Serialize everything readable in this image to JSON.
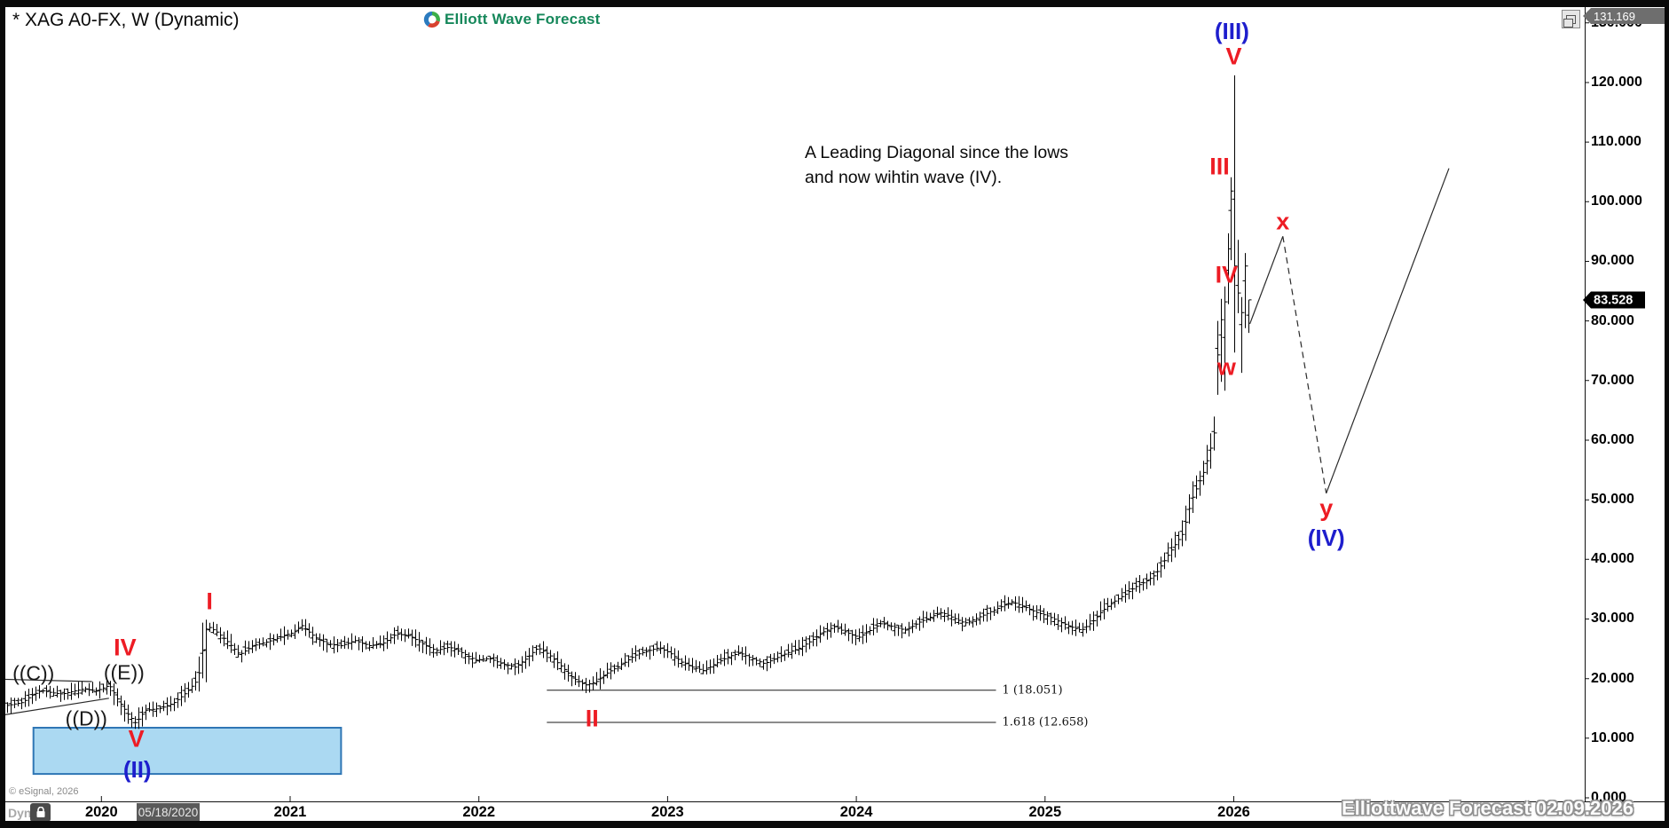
{
  "window": {
    "title": "* XAG A0-FX, W (Dynamic)",
    "brand": {
      "name": "Elliott Wave Forecast",
      "color": "#15875A"
    },
    "watermark": "Elliottwave Forecast  02.09.2026",
    "copyright": "© eSignal, 2026",
    "mode_label": "Dyn",
    "date_marker": "05/18/2020"
  },
  "note": {
    "line1": "A Leading Diagonal since the lows",
    "line2": "and now wihtin wave (IV)."
  },
  "price_axis": {
    "high_price_label": "131.169",
    "last_price_label": "83.528",
    "ticks": [
      {
        "value": 0,
        "label": "0.000"
      },
      {
        "value": 10,
        "label": "10.000"
      },
      {
        "value": 20,
        "label": "20.000"
      },
      {
        "value": 30,
        "label": "30.000"
      },
      {
        "value": 40,
        "label": "40.000"
      },
      {
        "value": 50,
        "label": "50.000"
      },
      {
        "value": 60,
        "label": "60.000"
      },
      {
        "value": 70,
        "label": "70.000"
      },
      {
        "value": 80,
        "label": "80.000"
      },
      {
        "value": 90,
        "label": "90.000"
      },
      {
        "value": 100,
        "label": "100.000"
      },
      {
        "value": 110,
        "label": "110.000"
      },
      {
        "value": 120,
        "label": "120.000"
      },
      {
        "value": 130,
        "label": "130.000"
      }
    ]
  },
  "time_axis": {
    "years": [
      "2020",
      "2021",
      "2022",
      "2023",
      "2024",
      "2025",
      "2026"
    ]
  },
  "chart_data": {
    "type": "ohlc-bar",
    "symbol": "XAG A0-FX",
    "timeframe": "W",
    "title": "* XAG A0-FX, W (Dynamic)",
    "y_axis": {
      "min": 0,
      "max": 131,
      "tick_step": 10,
      "grid": false
    },
    "x_axis": {
      "tick_years": [
        2020,
        2021,
        2022,
        2023,
        2024,
        2025,
        2026
      ]
    },
    "last_price": 83.528,
    "session_high": 131.169,
    "data_start": 2019.5,
    "data_end": 2025.902,
    "bar_step_years": 0.0188,
    "anchors": [
      [
        2019.5,
        15.5
      ],
      [
        2019.58,
        16.0
      ],
      [
        2019.63,
        17.2
      ],
      [
        2019.68,
        18.0
      ],
      [
        2019.74,
        17.6
      ],
      [
        2019.79,
        17.4
      ],
      [
        2019.85,
        17.9
      ],
      [
        2019.91,
        18.3
      ],
      [
        2019.97,
        17.9
      ],
      [
        2020.04,
        18.9
      ],
      [
        2020.09,
        16.2
      ],
      [
        2020.14,
        14.0
      ],
      [
        2020.18,
        12.5
      ],
      [
        2020.23,
        14.7
      ],
      [
        2020.31,
        15.0
      ],
      [
        2020.38,
        15.9
      ],
      [
        2020.45,
        17.7
      ],
      [
        2020.51,
        19.9
      ],
      [
        2020.555,
        28.9
      ],
      [
        2020.61,
        27.8
      ],
      [
        2020.66,
        26.4
      ],
      [
        2020.73,
        24.0
      ],
      [
        2020.8,
        25.5
      ],
      [
        2020.87,
        26.1
      ],
      [
        2020.94,
        26.9
      ],
      [
        2021.02,
        27.8
      ],
      [
        2021.06,
        28.9
      ],
      [
        2021.13,
        26.9
      ],
      [
        2021.2,
        25.8
      ],
      [
        2021.27,
        25.5
      ],
      [
        2021.34,
        26.4
      ],
      [
        2021.42,
        25.5
      ],
      [
        2021.49,
        25.9
      ],
      [
        2021.56,
        27.5
      ],
      [
        2021.63,
        27.2
      ],
      [
        2021.7,
        25.8
      ],
      [
        2021.77,
        24.7
      ],
      [
        2021.84,
        25.3
      ],
      [
        2021.91,
        24.3
      ],
      [
        2021.98,
        23.1
      ],
      [
        2022.05,
        23.4
      ],
      [
        2022.12,
        22.5
      ],
      [
        2022.19,
        21.9
      ],
      [
        2022.25,
        23.4
      ],
      [
        2022.31,
        25.2
      ],
      [
        2022.37,
        24.0
      ],
      [
        2022.44,
        21.9
      ],
      [
        2022.5,
        20.0
      ],
      [
        2022.56,
        18.9
      ],
      [
        2022.62,
        19.5
      ],
      [
        2022.68,
        21.0
      ],
      [
        2022.76,
        22.5
      ],
      [
        2022.83,
        24.0
      ],
      [
        2022.89,
        24.6
      ],
      [
        2022.95,
        25.2
      ],
      [
        2023.01,
        24.3
      ],
      [
        2023.07,
        22.8
      ],
      [
        2023.13,
        21.9
      ],
      [
        2023.19,
        21.3
      ],
      [
        2023.25,
        22.5
      ],
      [
        2023.32,
        23.7
      ],
      [
        2023.38,
        24.3
      ],
      [
        2023.44,
        23.4
      ],
      [
        2023.51,
        22.5
      ],
      [
        2023.57,
        23.4
      ],
      [
        2023.63,
        24.3
      ],
      [
        2023.7,
        25.2
      ],
      [
        2023.76,
        26.4
      ],
      [
        2023.82,
        27.8
      ],
      [
        2023.88,
        28.7
      ],
      [
        2023.94,
        27.8
      ],
      [
        2024.01,
        26.9
      ],
      [
        2024.07,
        28.1
      ],
      [
        2024.13,
        29.3
      ],
      [
        2024.19,
        28.7
      ],
      [
        2024.26,
        28.1
      ],
      [
        2024.32,
        29.3
      ],
      [
        2024.38,
        30.2
      ],
      [
        2024.45,
        31.1
      ],
      [
        2024.51,
        30.2
      ],
      [
        2024.57,
        29.3
      ],
      [
        2024.64,
        30.2
      ],
      [
        2024.7,
        31.1
      ],
      [
        2024.76,
        32.0
      ],
      [
        2024.82,
        32.9
      ],
      [
        2024.89,
        32.0
      ],
      [
        2024.95,
        31.1
      ],
      [
        2025.01,
        30.5
      ],
      [
        2025.07,
        29.6
      ],
      [
        2025.13,
        28.7
      ],
      [
        2025.19,
        28.1
      ],
      [
        2025.25,
        29.6
      ],
      [
        2025.3,
        31.4
      ],
      [
        2025.36,
        32.9
      ],
      [
        2025.42,
        34.1
      ],
      [
        2025.47,
        35.3
      ],
      [
        2025.53,
        36.3
      ],
      [
        2025.58,
        37.4
      ],
      [
        2025.61,
        38.9
      ],
      [
        2025.65,
        40.8
      ],
      [
        2025.69,
        42.7
      ],
      [
        2025.73,
        44.5
      ],
      [
        2025.75,
        47.5
      ],
      [
        2025.78,
        50.5
      ],
      [
        2025.81,
        52.7
      ],
      [
        2025.84,
        54.9
      ],
      [
        2025.86,
        57.2
      ],
      [
        2025.88,
        59.4
      ],
      [
        2025.9,
        62.4
      ]
    ],
    "key_bars": [
      {
        "year": 2020.555,
        "high": 29.9,
        "low": 19.4,
        "close": 28.3
      },
      {
        "year": 2025.912,
        "high": 80.0,
        "low": 67.6,
        "close": 74.3
      },
      {
        "year": 2025.932,
        "high": 83.7,
        "low": 69.8,
        "close": 80.2
      },
      {
        "year": 2025.95,
        "high": 85.8,
        "low": 68.3,
        "close": 83.2
      },
      {
        "year": 2025.969,
        "high": 94.7,
        "low": 82.8,
        "close": 92.1
      },
      {
        "year": 2025.985,
        "high": 104.1,
        "low": 90.2,
        "close": 101.8
      },
      {
        "year": 2026.003,
        "high": 121.2,
        "low": 74.7,
        "close": 89.2
      },
      {
        "year": 2026.022,
        "high": 93.6,
        "low": 81.3,
        "close": 84.7
      },
      {
        "year": 2026.04,
        "high": 84.0,
        "low": 71.3,
        "close": 81.4
      },
      {
        "year": 2026.059,
        "high": 91.4,
        "low": 78.8,
        "close": 89.2
      },
      {
        "year": 2026.078,
        "high": 83.5,
        "low": 78.0,
        "close": 83.528
      }
    ],
    "fib_levels": [
      {
        "label": "1 (18.051)",
        "price": 18.051,
        "from_year": 2022.36,
        "to_year": 2024.74
      },
      {
        "label": "1.618 (12.658)",
        "price": 12.658,
        "from_year": 2022.36,
        "to_year": 2024.74
      }
    ],
    "trend_lines": [
      {
        "from": [
          2019.46,
          19.9
        ],
        "to": [
          2019.95,
          19.5
        ],
        "style": "solid"
      },
      {
        "from": [
          2019.46,
          13.8
        ],
        "to": [
          2020.04,
          16.7
        ],
        "style": "solid"
      }
    ],
    "projection_lines": [
      {
        "from": [
          2026.085,
          79.5
        ],
        "to": [
          2026.26,
          94.2
        ],
        "style": "solid"
      },
      {
        "from": [
          2026.26,
          94.2
        ],
        "to": [
          2026.49,
          51.1
        ],
        "style": "dashed"
      },
      {
        "from": [
          2026.49,
          51.1
        ],
        "to": [
          2027.14,
          105.6
        ],
        "style": "solid"
      }
    ],
    "support_box": {
      "from_year": 2019.64,
      "to_year": 2021.27,
      "price_top": 11.76,
      "price_bottom": 4.0,
      "fill": "#ABD9F2",
      "border": "#2F76B5"
    },
    "wave_labels": [
      {
        "text": "(III)",
        "year": 2025.99,
        "price": 128.6,
        "color": "blue"
      },
      {
        "text": "V",
        "year": 2026.0,
        "price": 124.3,
        "color": "red"
      },
      {
        "text": "III",
        "year": 2025.925,
        "price": 105.8,
        "color": "red"
      },
      {
        "text": "x",
        "year": 2026.26,
        "price": 96.6,
        "color": "red"
      },
      {
        "text": "IV",
        "year": 2025.962,
        "price": 87.7,
        "color": "red"
      },
      {
        "text": "w",
        "year": 2025.962,
        "price": 72.2,
        "color": "red"
      },
      {
        "text": "y",
        "year": 2026.49,
        "price": 48.5,
        "color": "red"
      },
      {
        "text": "(IV)",
        "year": 2026.49,
        "price": 43.6,
        "color": "blue"
      },
      {
        "text": "I",
        "year": 2020.573,
        "price": 32.9,
        "color": "red"
      },
      {
        "text": "IV",
        "year": 2020.125,
        "price": 25.2,
        "color": "red"
      },
      {
        "text": "V",
        "year": 2020.185,
        "price": 9.8,
        "color": "red"
      },
      {
        "text": "(II)",
        "year": 2020.19,
        "price": 4.8,
        "color": "blue"
      },
      {
        "text": "II",
        "year": 2022.6,
        "price": 13.2,
        "color": "red"
      },
      {
        "text": "((C))",
        "year": 2019.64,
        "price": 20.8,
        "color": "black"
      },
      {
        "text": "((E))",
        "year": 2020.12,
        "price": 21.0,
        "color": "black"
      },
      {
        "text": "((D))",
        "year": 2019.92,
        "price": 13.3,
        "color": "black"
      }
    ]
  }
}
